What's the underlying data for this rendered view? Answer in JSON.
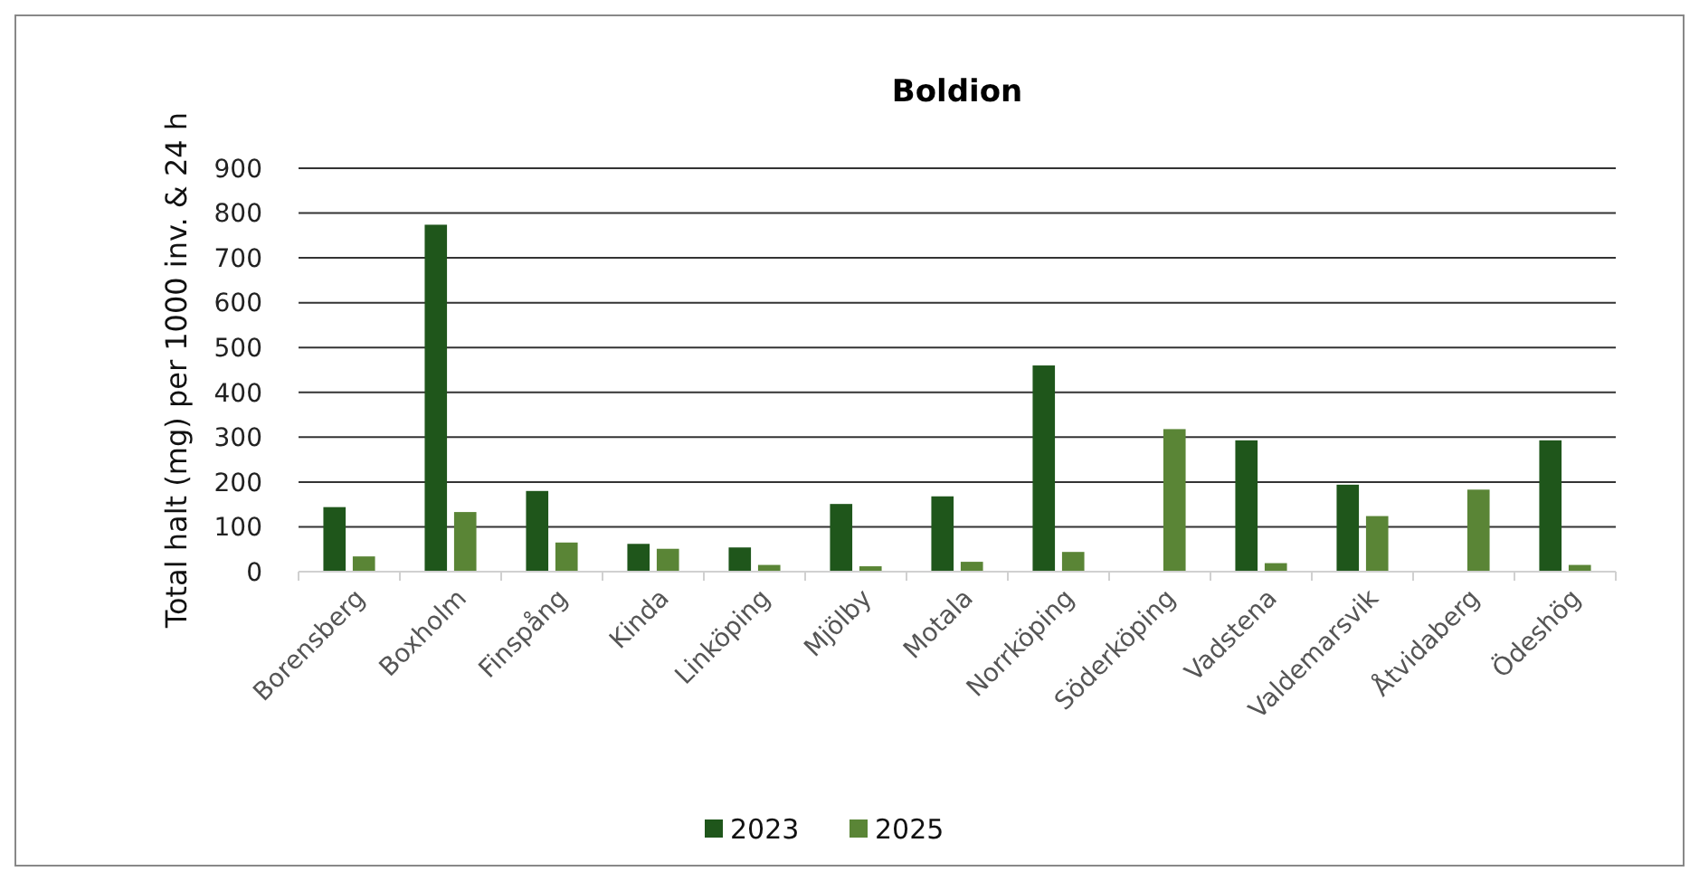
{
  "chart_data": {
    "type": "bar",
    "title": "Boldion",
    "ylabel": "Total halt (mg) per 1000 inv. & 24 h",
    "categories": [
      "Borensberg",
      "Boxholm",
      "Finspång",
      "Kinda",
      "Linköping",
      "Mjölby",
      "Motala",
      "Norrköping",
      "Söderköping",
      "Vadstena",
      "Valdemarsvik",
      "Åtvidaberg",
      "Ödeshög"
    ],
    "series": [
      {
        "name": "2023",
        "color": "#1f561b",
        "values": [
          144,
          774,
          180,
          62,
          54,
          151,
          168,
          460,
          null,
          293,
          194,
          null,
          293
        ]
      },
      {
        "name": "2025",
        "color": "#5a8536",
        "values": [
          34,
          133,
          65,
          51,
          15,
          12,
          22,
          44,
          318,
          19,
          124,
          183,
          15
        ]
      }
    ],
    "ylim": [
      0,
      900
    ],
    "yticks": [
      0,
      100,
      200,
      300,
      400,
      500,
      600,
      700,
      800,
      900
    ],
    "grid": "y",
    "legend": "bottom"
  }
}
